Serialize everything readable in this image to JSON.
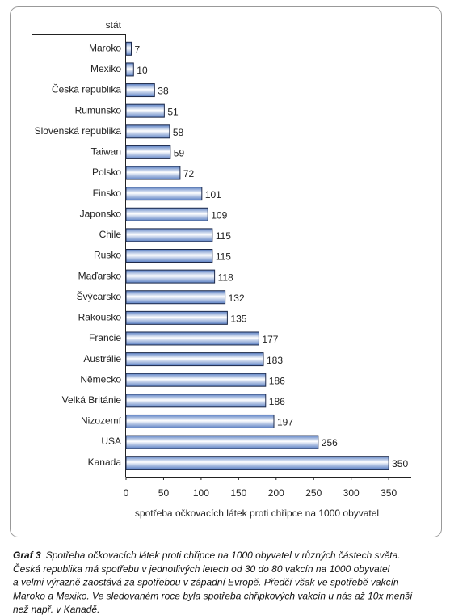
{
  "chart_data": {
    "type": "bar",
    "orientation": "horizontal",
    "y_label": "stát",
    "x_label": "spotřeba očkovacích látek proti chřipce na 1000 obyvatel",
    "categories": [
      "Maroko",
      "Mexiko",
      "Česká republika",
      "Rumunsko",
      "Slovenská republika",
      "Taiwan",
      "Polsko",
      "Finsko",
      "Japonsko",
      "Chile",
      "Rusko",
      "Maďarsko",
      "Švýcarsko",
      "Rakousko",
      "Francie",
      "Austrálie",
      "Německo",
      "Velká Británie",
      "Nizozemí",
      "USA",
      "Kanada"
    ],
    "values": [
      7,
      10,
      38,
      51,
      58,
      59,
      72,
      101,
      109,
      115,
      115,
      118,
      132,
      135,
      177,
      183,
      186,
      186,
      197,
      256,
      350
    ],
    "color": "#5b80c4",
    "xlim": [
      0,
      380
    ],
    "xticks": [
      0,
      50,
      100,
      150,
      200,
      250,
      300,
      350
    ],
    "grid": false
  },
  "caption": {
    "label": "Graf 3",
    "lines": [
      "Spotřeba očkovacích látek proti chřipce na 1000 obyvatel v různých částech světa.",
      "Česká republika má spotřebu v jednotlivých letech od 30 do 80 vakcín na 1000 obyvatel",
      "a velmi výrazně zaostává za spotřebou v západní Evropě. Předčí však ve spotřebě vakcín",
      "Maroko a Mexiko. Ve sledovaném roce byla spotřeba chřipkových vakcín u nás až 10x menší",
      "než např. v Kanadě."
    ]
  }
}
